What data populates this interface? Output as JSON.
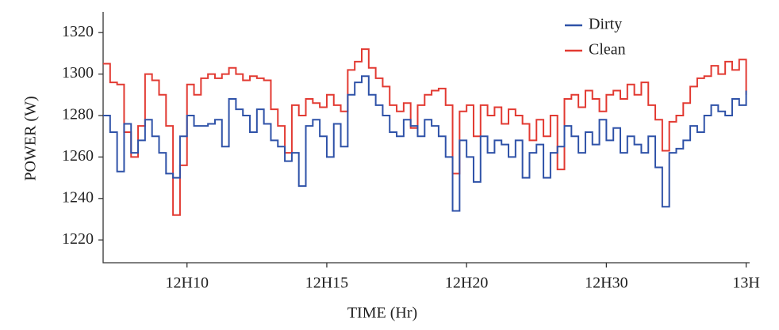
{
  "chart_data": {
    "type": "line",
    "step": true,
    "x_label": "TIME (Hr)",
    "y_label": "POWER (W)",
    "x": [
      0,
      1,
      2,
      3,
      4,
      5,
      6,
      7,
      8,
      9,
      10,
      11,
      12,
      13,
      14,
      15,
      16,
      17,
      18,
      19,
      20,
      21,
      22,
      23,
      24,
      25,
      26,
      27,
      28,
      29,
      30,
      31,
      32,
      33,
      34,
      35,
      36,
      37,
      38,
      39,
      40,
      41,
      42,
      43,
      44,
      45,
      46,
      47,
      48,
      49,
      50,
      51,
      52,
      53,
      54,
      55,
      56,
      57,
      58,
      59,
      60,
      61,
      62,
      63,
      64,
      65,
      66,
      67,
      68,
      69,
      70,
      71,
      72,
      73,
      74,
      75,
      76,
      77,
      78,
      79,
      80,
      81,
      82,
      83,
      84,
      85,
      86,
      87,
      88,
      89,
      90,
      91,
      92
    ],
    "xlim": [
      0,
      92.5
    ],
    "xticks": [
      {
        "value": 12,
        "label": "12H10"
      },
      {
        "value": 32,
        "label": "12H15"
      },
      {
        "value": 52,
        "label": "12H20"
      },
      {
        "value": 72,
        "label": "12H30"
      },
      {
        "value": 92,
        "label": "13H"
      }
    ],
    "ylim": [
      1209,
      1330
    ],
    "yticks": [
      1220,
      1240,
      1260,
      1280,
      1300,
      1320
    ],
    "legend": "upper right",
    "series": [
      {
        "name": "Dirty",
        "color": "#2f52a8",
        "values": [
          1280,
          1272,
          1253,
          1276,
          1262,
          1268,
          1278,
          1270,
          1262,
          1252,
          1250,
          1270,
          1280,
          1275,
          1275,
          1276,
          1278,
          1265,
          1288,
          1283,
          1280,
          1272,
          1283,
          1276,
          1268,
          1265,
          1258,
          1262,
          1246,
          1275,
          1278,
          1270,
          1260,
          1276,
          1265,
          1290,
          1296,
          1299,
          1290,
          1285,
          1280,
          1272,
          1270,
          1278,
          1275,
          1270,
          1278,
          1275,
          1270,
          1260,
          1234,
          1268,
          1260,
          1248,
          1270,
          1262,
          1268,
          1266,
          1260,
          1268,
          1250,
          1262,
          1266,
          1250,
          1262,
          1265,
          1275,
          1270,
          1262,
          1272,
          1266,
          1278,
          1268,
          1274,
          1262,
          1270,
          1266,
          1262,
          1270,
          1255,
          1236,
          1262,
          1264,
          1268,
          1275,
          1272,
          1280,
          1285,
          1282,
          1280,
          1288,
          1285,
          1292
        ]
      },
      {
        "name": "Clean",
        "color": "#e23a32",
        "values": [
          1305,
          1296,
          1295,
          1272,
          1260,
          1275,
          1300,
          1297,
          1290,
          1275,
          1232,
          1256,
          1295,
          1290,
          1298,
          1300,
          1298,
          1300,
          1303,
          1300,
          1297,
          1299,
          1298,
          1297,
          1283,
          1275,
          1262,
          1285,
          1280,
          1288,
          1286,
          1284,
          1290,
          1285,
          1282,
          1302,
          1306,
          1312,
          1303,
          1298,
          1294,
          1285,
          1282,
          1286,
          1274,
          1285,
          1290,
          1292,
          1293,
          1285,
          1252,
          1282,
          1285,
          1270,
          1285,
          1280,
          1284,
          1276,
          1283,
          1280,
          1276,
          1268,
          1278,
          1270,
          1280,
          1254,
          1288,
          1290,
          1284,
          1292,
          1288,
          1282,
          1290,
          1292,
          1288,
          1295,
          1290,
          1296,
          1285,
          1278,
          1263,
          1277,
          1280,
          1286,
          1294,
          1298,
          1299,
          1304,
          1300,
          1306,
          1302,
          1307,
          1290
        ]
      }
    ]
  }
}
